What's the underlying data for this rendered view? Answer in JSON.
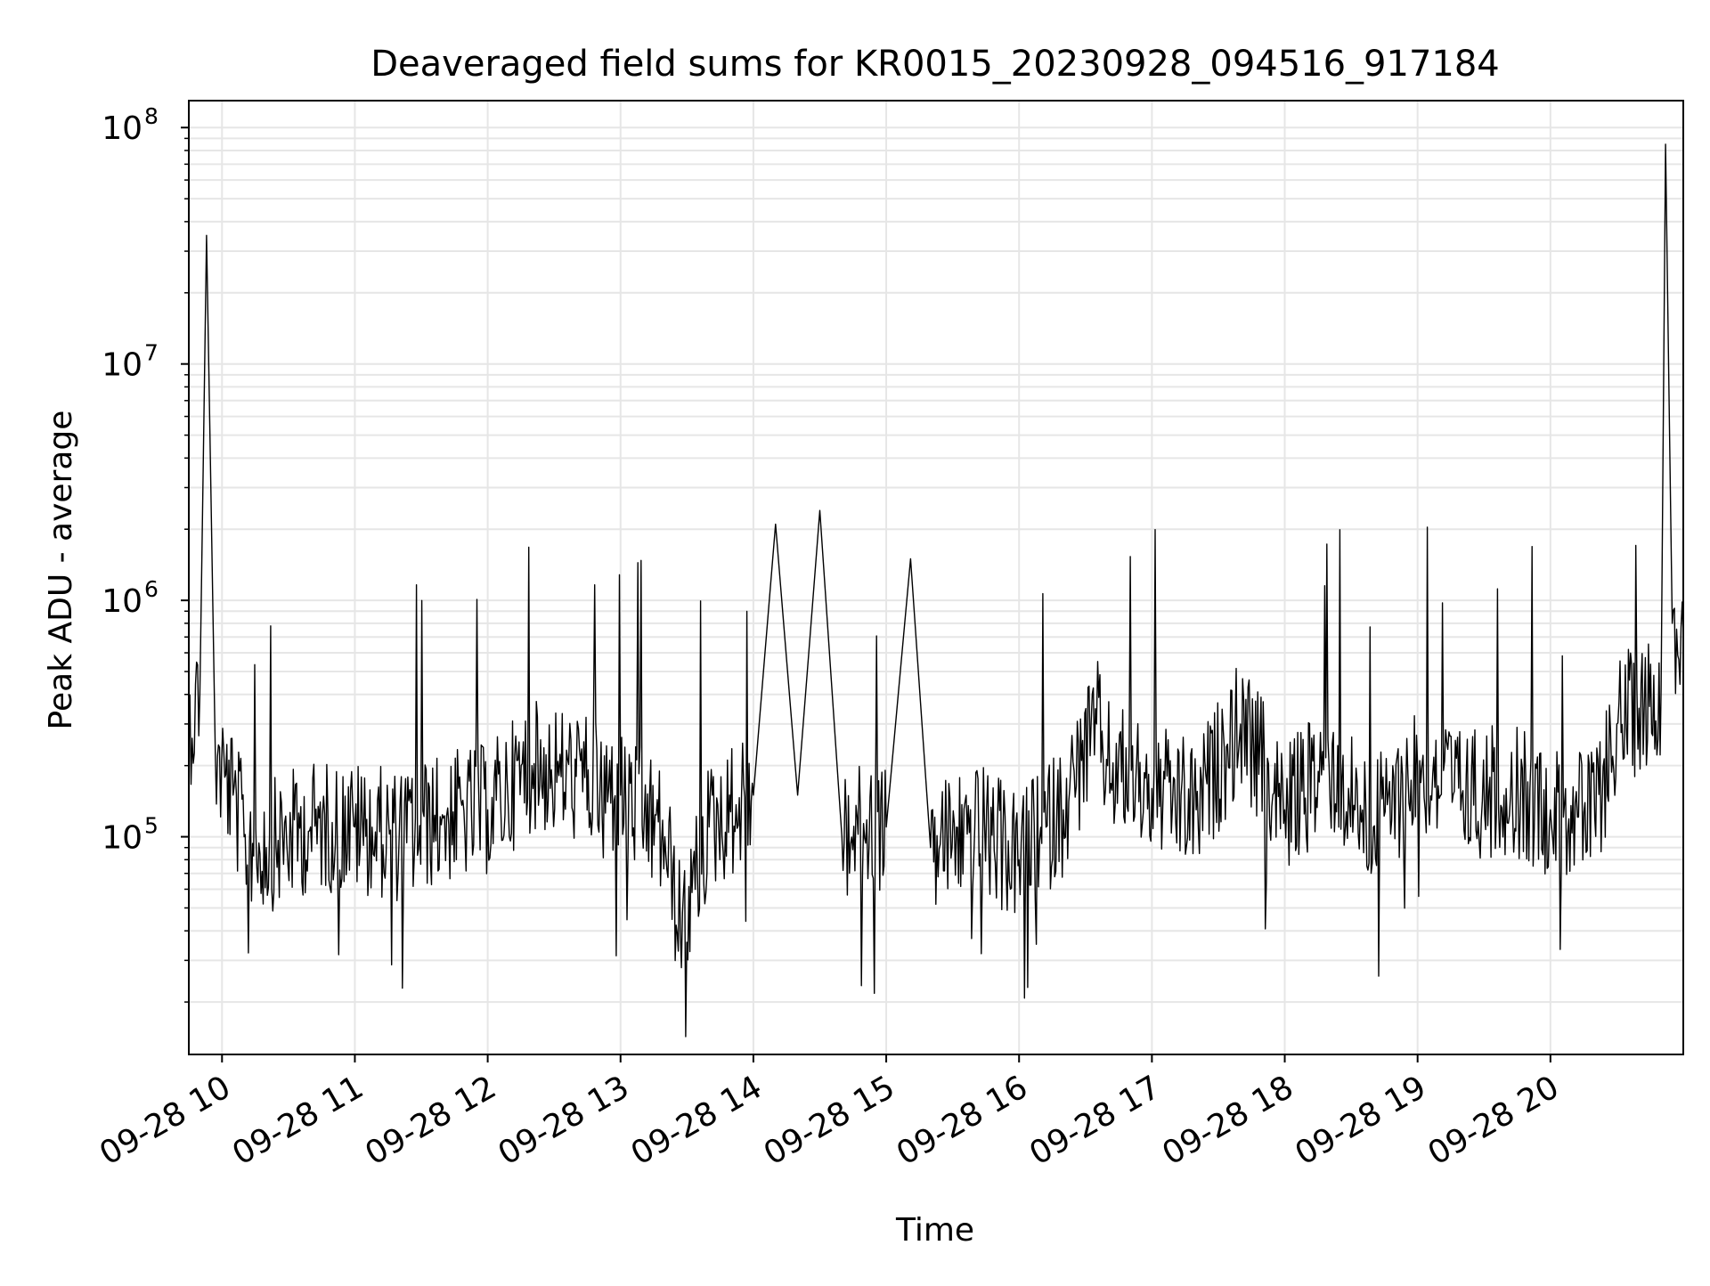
{
  "chart_data": {
    "type": "line",
    "title": "Deaveraged field sums for KR0015_20230928_094516_917184",
    "xlabel": "Time",
    "ylabel": "Peak ADU - average",
    "yscale": "log",
    "ylim": [
      12000,
      130000000
    ],
    "xlim": [
      "2023-09-28 09:45",
      "2023-09-28 21:00"
    ],
    "grid": true,
    "line_color": "#000000",
    "grid_color": "#e6e6e6",
    "x_ticks": [
      {
        "value": "2023-09-28 10:00",
        "label": "09-28 10"
      },
      {
        "value": "2023-09-28 11:00",
        "label": "09-28 11"
      },
      {
        "value": "2023-09-28 12:00",
        "label": "09-28 12"
      },
      {
        "value": "2023-09-28 13:00",
        "label": "09-28 13"
      },
      {
        "value": "2023-09-28 14:00",
        "label": "09-28 14"
      },
      {
        "value": "2023-09-28 15:00",
        "label": "09-28 15"
      },
      {
        "value": "2023-09-28 16:00",
        "label": "09-28 16"
      },
      {
        "value": "2023-09-28 17:00",
        "label": "09-28 17"
      },
      {
        "value": "2023-09-28 18:00",
        "label": "09-28 18"
      },
      {
        "value": "2023-09-28 19:00",
        "label": "09-28 19"
      },
      {
        "value": "2023-09-28 20:00",
        "label": "09-28 20"
      }
    ],
    "y_ticks": [
      {
        "value": 100000,
        "base": "10",
        "exp": "5"
      },
      {
        "value": 1000000,
        "base": "10",
        "exp": "6"
      },
      {
        "value": 10000000,
        "base": "10",
        "exp": "7"
      },
      {
        "value": 100000000,
        "base": "10",
        "exp": "8"
      }
    ],
    "series": [
      {
        "x": [
          "2023-09-28 09:45",
          "2023-09-28 09:50",
          "2023-09-28 09:53",
          "2023-09-28 09:57",
          "2023-09-28 10:05",
          "2023-09-28 10:10",
          "2023-09-28 10:20",
          "2023-09-28 10:40",
          "2023-09-28 11:00",
          "2023-09-28 11:20",
          "2023-09-28 11:40",
          "2023-09-28 12:00",
          "2023-09-28 12:20",
          "2023-09-28 12:40",
          "2023-09-28 13:00",
          "2023-09-28 13:20",
          "2023-09-28 13:27",
          "2023-09-28 13:40",
          "2023-09-28 14:00",
          "2023-09-28 14:10",
          "2023-09-28 14:20",
          "2023-09-28 14:30",
          "2023-09-28 14:40",
          "2023-09-28 15:00",
          "2023-09-28 15:11",
          "2023-09-28 15:20",
          "2023-09-28 15:40",
          "2023-09-28 16:00",
          "2023-09-28 16:20",
          "2023-09-28 16:35",
          "2023-09-28 16:40",
          "2023-09-28 17:00",
          "2023-09-28 17:20",
          "2023-09-28 17:40",
          "2023-09-28 18:00",
          "2023-09-28 18:20",
          "2023-09-28 18:40",
          "2023-09-28 19:00",
          "2023-09-28 19:20",
          "2023-09-28 19:40",
          "2023-09-28 20:00",
          "2023-09-28 20:20",
          "2023-09-28 20:30",
          "2023-09-28 20:40",
          "2023-09-28 20:50",
          "2023-09-28 20:52",
          "2023-09-28 20:55",
          "2023-09-28 21:00"
        ],
        "y": [
          300000,
          400000,
          35000000,
          220000,
          150000,
          100000,
          90000,
          110000,
          110000,
          100000,
          120000,
          130000,
          200000,
          180000,
          150000,
          100000,
          40000,
          110000,
          150000,
          2100000,
          150000,
          2400000,
          100000,
          110000,
          1500000,
          90000,
          110000,
          80000,
          130000,
          300000,
          200000,
          160000,
          130000,
          300000,
          130000,
          200000,
          110000,
          200000,
          150000,
          160000,
          130000,
          120000,
          300000,
          350000,
          420000,
          85000000,
          800000,
          700000
        ]
      }
    ]
  }
}
